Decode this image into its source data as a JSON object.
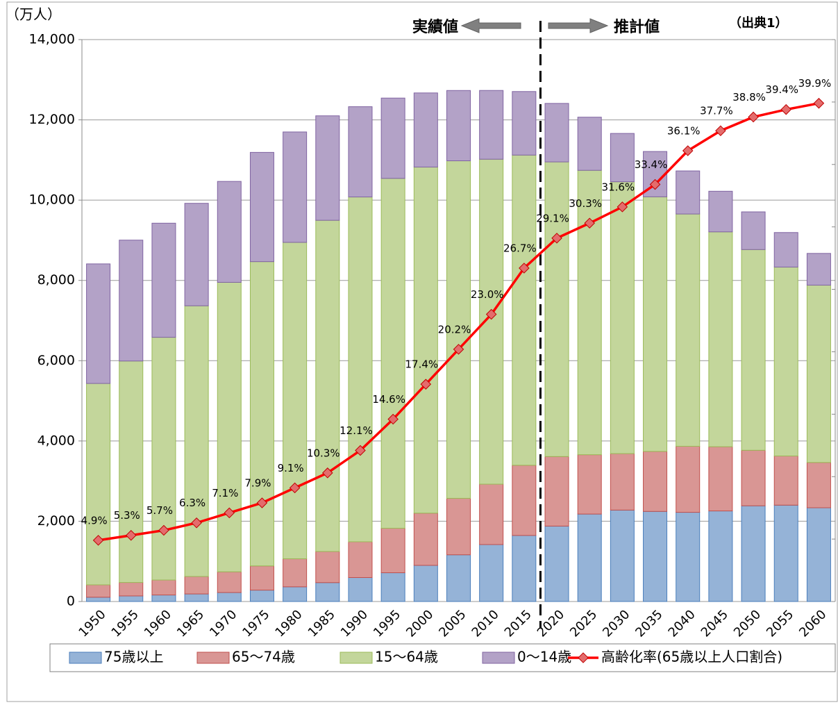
{
  "chart_data": {
    "type": "bar",
    "stacked": true,
    "y_unit_label": "（万人）",
    "annotations": {
      "actual": "実績値",
      "projected": "推計値",
      "source": "（出典1）"
    },
    "categories": [
      "1950",
      "1955",
      "1960",
      "1965",
      "1970",
      "1975",
      "1980",
      "1985",
      "1990",
      "1995",
      "2000",
      "2005",
      "2010",
      "2015",
      "2020",
      "2025",
      "2030",
      "2035",
      "2040",
      "2045",
      "2050",
      "2055",
      "2060"
    ],
    "series": [
      {
        "name": "75歳以上",
        "color": "#95b3d7",
        "stroke": "#4a7ebb",
        "values": [
          107,
          139,
          163,
          189,
          224,
          284,
          366,
          471,
          597,
          717,
          901,
          1164,
          1419,
          1646,
          1879,
          2179,
          2278,
          2245,
          2223,
          2257,
          2385,
          2401,
          2336
        ]
      },
      {
        "name": "65～74歳",
        "color": "#d99694",
        "stroke": "#c0504d",
        "values": [
          309,
          336,
          373,
          435,
          516,
          603,
          699,
          776,
          892,
          1109,
          1301,
          1407,
          1505,
          1749,
          1733,
          1479,
          1407,
          1495,
          1645,
          1600,
          1383,
          1225,
          1128
        ]
      },
      {
        "name": "15～64歳",
        "color": "#c3d69b",
        "stroke": "#9bbb59",
        "values": [
          5017,
          5517,
          6047,
          6744,
          7212,
          7581,
          7883,
          8251,
          8590,
          8716,
          8622,
          8409,
          8096,
          7728,
          7341,
          7085,
          6773,
          6343,
          5787,
          5353,
          5001,
          4706,
          4418
        ]
      },
      {
        "name": "0～14歳",
        "color": "#b3a2c7",
        "stroke": "#8064a2",
        "values": [
          2979,
          3012,
          2843,
          2553,
          2515,
          2722,
          2751,
          2603,
          2249,
          2001,
          1847,
          1752,
          1713,
          1583,
          1457,
          1324,
          1204,
          1129,
          1073,
          1012,
          939,
          861,
          791
        ]
      },
      {
        "name": "高齢化率(65歳以上人口割合)",
        "type": "line",
        "axis": "y2",
        "color": "#ff0000",
        "values": [
          4.9,
          5.3,
          5.7,
          6.3,
          7.1,
          7.9,
          9.1,
          10.3,
          12.1,
          14.6,
          17.4,
          20.2,
          23.0,
          26.7,
          29.1,
          30.3,
          31.6,
          33.4,
          36.1,
          37.7,
          38.8,
          39.4,
          39.9
        ],
        "value_labels": [
          "4.9%",
          "5.3%",
          "5.7%",
          "6.3%",
          "7.1%",
          "7.9%",
          "9.1%",
          "10.3%",
          "12.1%",
          "14.6%",
          "17.4%",
          "20.2%",
          "23.0%",
          "26.7%",
          "29.1%",
          "30.3%",
          "31.6%",
          "33.4%",
          "36.1%",
          "37.7%",
          "38.8%",
          "39.4%",
          "39.9%"
        ]
      }
    ],
    "ylim": [
      0,
      14000
    ],
    "yticks": [
      0,
      {
        "value": 2000,
        "label": "2,000"
      },
      {
        "value": 4000,
        "label": "4,000"
      },
      {
        "value": 6000,
        "label": "6,000"
      },
      {
        "value": 8000,
        "label": "8,000"
      },
      {
        "value": 10000,
        "label": "10,000"
      },
      {
        "value": 12000,
        "label": "12,000"
      },
      {
        "value": 14000,
        "label": "14,000"
      }
    ],
    "y2lim": [
      0,
      45
    ],
    "y2ticks": [
      0,
      5,
      10,
      15,
      20,
      25,
      30,
      35,
      40,
      45
    ],
    "grid": true,
    "legend": "bottom"
  }
}
